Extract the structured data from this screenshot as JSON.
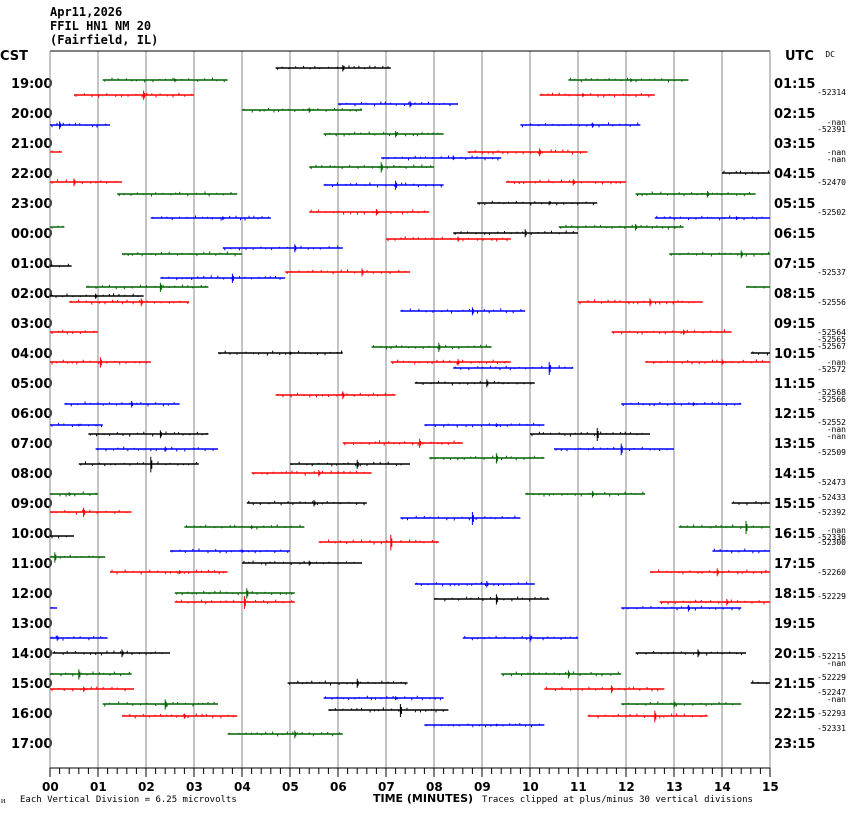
{
  "header": {
    "date": "Apr11,2026",
    "station": "FFIL HN1 NM 20",
    "location": "(Fairfield, IL)"
  },
  "left_axis_title": "CST",
  "right_axis_title": "UTC",
  "dc_title": "DC",
  "chart_data": {
    "type": "line",
    "title": "FFIL HN1 NM 20 (Fairfield, IL) Apr11,2026",
    "xlabel": "TIME (MINUTES)",
    "xlim": [
      0,
      15
    ],
    "x_ticks": [
      "00",
      "01",
      "02",
      "03",
      "04",
      "05",
      "06",
      "07",
      "08",
      "09",
      "10",
      "11",
      "12",
      "13",
      "14",
      "15"
    ],
    "grid": true,
    "cst_labels": [
      "19:00",
      "20:00",
      "21:00",
      "22:00",
      "23:00",
      "00:00",
      "01:00",
      "02:00",
      "03:00",
      "04:00",
      "05:00",
      "06:00",
      "07:00",
      "08:00",
      "09:00",
      "10:00",
      "11:00",
      "12:00",
      "13:00",
      "14:00",
      "15:00",
      "16:00",
      "17:00"
    ],
    "utc_labels": [
      "01:15",
      "02:15",
      "03:15",
      "04:15",
      "05:15",
      "06:15",
      "07:15",
      "08:15",
      "09:15",
      "10:15",
      "11:15",
      "12:15",
      "13:15",
      "14:15",
      "15:15",
      "16:15",
      "17:15",
      "18:15",
      "19:15",
      "20:15",
      "21:15",
      "22:15",
      "23:15"
    ],
    "dc_values": [
      {
        "row": 0,
        "texts": [
          "-52314"
        ]
      },
      {
        "row": 1,
        "texts": [
          "-nan",
          "-52391"
        ]
      },
      {
        "row": 2,
        "texts": [
          "-nan",
          "-nan"
        ]
      },
      {
        "row": 3,
        "texts": [
          "-52470"
        ]
      },
      {
        "row": 4,
        "texts": [
          "-52502"
        ]
      },
      {
        "row": 6,
        "texts": [
          "-52537"
        ]
      },
      {
        "row": 7,
        "texts": [
          "-52556"
        ]
      },
      {
        "row": 8,
        "texts": [
          "-52564",
          "-52565",
          "-52567"
        ]
      },
      {
        "row": 9,
        "texts": [
          "-nan",
          "-52572"
        ]
      },
      {
        "row": 10,
        "texts": [
          "-52568",
          "-52566"
        ]
      },
      {
        "row": 11,
        "texts": [
          "-52552",
          "-nan",
          "-nan"
        ]
      },
      {
        "row": 12,
        "texts": [
          "-52509"
        ]
      },
      {
        "row": 13,
        "texts": [
          "-52473"
        ]
      },
      {
        "row": 13.5,
        "texts": [
          "-52433"
        ]
      },
      {
        "row": 14,
        "texts": [
          "-52392"
        ]
      },
      {
        "row": 14.6,
        "texts": [
          "-nan",
          "-52336"
        ]
      },
      {
        "row": 15,
        "texts": [
          "-52300"
        ]
      },
      {
        "row": 16,
        "texts": [
          "-52260"
        ]
      },
      {
        "row": 16.8,
        "texts": [
          "-52229"
        ]
      },
      {
        "row": 18.8,
        "texts": [
          "-52215",
          "-nan"
        ]
      },
      {
        "row": 19.5,
        "texts": [
          "-52229"
        ]
      },
      {
        "row": 20,
        "texts": [
          "-52247",
          "-nan"
        ]
      },
      {
        "row": 20.7,
        "texts": [
          "-52293"
        ]
      },
      {
        "row": 21.2,
        "texts": [
          "-52331"
        ]
      }
    ],
    "series_colors": {
      "black": "#000000",
      "red": "#ff0000",
      "blue": "#0000ff",
      "green": "#006400"
    },
    "segments": [
      {
        "row": -0.6,
        "start": 4.7,
        "end": 7.1,
        "color": "black",
        "spike": 6.1,
        "amp": 5
      },
      {
        "row": -0.2,
        "start": 1.1,
        "end": 3.7,
        "color": "green",
        "spike": 2.6,
        "amp": 3
      },
      {
        "row": -0.2,
        "start": 10.8,
        "end": 13.3,
        "color": "green",
        "spike": 12.1,
        "amp": 3
      },
      {
        "row": 0.3,
        "start": 0.5,
        "end": 3.0,
        "color": "red",
        "spike": 1.95,
        "amp": 7
      },
      {
        "row": 0.3,
        "start": 10.2,
        "end": 12.6,
        "color": "red",
        "spike": 11.1,
        "amp": 3
      },
      {
        "row": 0.6,
        "start": 6.0,
        "end": 8.5,
        "color": "blue",
        "spike": 7.5,
        "amp": 5
      },
      {
        "row": 0.8,
        "start": 4.0,
        "end": 6.5,
        "color": "green",
        "spike": 5.4,
        "amp": 4
      },
      {
        "row": 1.3,
        "start": 0.0,
        "end": 1.25,
        "color": "blue",
        "spike": 0.2,
        "amp": 6
      },
      {
        "row": 1.3,
        "start": 9.8,
        "end": 12.3,
        "color": "blue",
        "spike": 11.3,
        "amp": 4
      },
      {
        "row": 1.6,
        "start": 5.7,
        "end": 8.2,
        "color": "green",
        "spike": 7.2,
        "amp": 5
      },
      {
        "row": 2.2,
        "start": 0.0,
        "end": 0.25,
        "color": "red",
        "spike": null,
        "amp": 0
      },
      {
        "row": 2.2,
        "start": 8.7,
        "end": 11.2,
        "color": "red",
        "spike": 10.2,
        "amp": 6
      },
      {
        "row": 2.4,
        "start": 6.9,
        "end": 9.4,
        "color": "blue",
        "spike": 8.4,
        "amp": 3
      },
      {
        "row": 2.7,
        "start": 5.4,
        "end": 8.0,
        "color": "green",
        "spike": 6.9,
        "amp": 8
      },
      {
        "row": 2.9,
        "start": 14.0,
        "end": 15.0,
        "color": "black",
        "spike": null,
        "amp": 0
      },
      {
        "row": 3.2,
        "start": 0.0,
        "end": 1.5,
        "color": "red",
        "spike": 0.5,
        "amp": 6
      },
      {
        "row": 3.2,
        "start": 9.5,
        "end": 12.0,
        "color": "red",
        "spike": 10.9,
        "amp": 5
      },
      {
        "row": 3.3,
        "start": 5.7,
        "end": 8.2,
        "color": "blue",
        "spike": 7.2,
        "amp": 7
      },
      {
        "row": 3.6,
        "start": 1.4,
        "end": 3.9,
        "color": "green",
        "spike": null,
        "amp": 0
      },
      {
        "row": 3.6,
        "start": 12.2,
        "end": 14.7,
        "color": "green",
        "spike": 13.7,
        "amp": 5
      },
      {
        "row": 3.9,
        "start": 8.9,
        "end": 11.4,
        "color": "black",
        "spike": 10.4,
        "amp": 3
      },
      {
        "row": 4.2,
        "start": 5.4,
        "end": 7.9,
        "color": "red",
        "spike": 6.8,
        "amp": 5
      },
      {
        "row": 4.4,
        "start": 2.1,
        "end": 4.6,
        "color": "blue",
        "spike": 3.6,
        "amp": 3
      },
      {
        "row": 4.4,
        "start": 12.6,
        "end": 15.0,
        "color": "blue",
        "spike": 14.3,
        "amp": 3
      },
      {
        "row": 4.7,
        "start": 0.0,
        "end": 0.3,
        "color": "green",
        "spike": null,
        "amp": 0
      },
      {
        "row": 4.7,
        "start": 10.6,
        "end": 13.2,
        "color": "green",
        "spike": 12.2,
        "amp": 5
      },
      {
        "row": 4.9,
        "start": 8.4,
        "end": 11.0,
        "color": "black",
        "spike": 9.9,
        "amp": 6
      },
      {
        "row": 5.1,
        "start": 7.0,
        "end": 9.6,
        "color": "red",
        "spike": 8.5,
        "amp": 4
      },
      {
        "row": 5.4,
        "start": 3.6,
        "end": 6.1,
        "color": "blue",
        "spike": 5.1,
        "amp": 6
      },
      {
        "row": 5.6,
        "start": 1.5,
        "end": 4.0,
        "color": "green",
        "spike": null,
        "amp": 0
      },
      {
        "row": 5.6,
        "start": 12.9,
        "end": 15.0,
        "color": "green",
        "spike": 14.4,
        "amp": 6
      },
      {
        "row": 6.0,
        "start": 0.0,
        "end": 0.45,
        "color": "black",
        "spike": null,
        "amp": 0
      },
      {
        "row": 6.2,
        "start": 4.9,
        "end": 7.5,
        "color": "red",
        "spike": 6.5,
        "amp": 6
      },
      {
        "row": 6.4,
        "start": 2.3,
        "end": 4.9,
        "color": "blue",
        "spike": 3.8,
        "amp": 7
      },
      {
        "row": 6.7,
        "start": 0.75,
        "end": 3.3,
        "color": "green",
        "spike": 2.3,
        "amp": 7
      },
      {
        "row": 6.7,
        "start": 14.5,
        "end": 15.0,
        "color": "green",
        "spike": null,
        "amp": 0
      },
      {
        "row": 7.0,
        "start": 0.0,
        "end": 1.95,
        "color": "black",
        "spike": 0.95,
        "amp": 4
      },
      {
        "row": 7.2,
        "start": 0.4,
        "end": 2.9,
        "color": "red",
        "spike": 1.9,
        "amp": 6
      },
      {
        "row": 7.2,
        "start": 11.0,
        "end": 13.6,
        "color": "red",
        "spike": 12.5,
        "amp": 6
      },
      {
        "row": 7.5,
        "start": 7.3,
        "end": 9.9,
        "color": "blue",
        "spike": 8.8,
        "amp": 6
      },
      {
        "row": 8.2,
        "start": 0.0,
        "end": 1.0,
        "color": "red",
        "spike": null,
        "amp": 0
      },
      {
        "row": 8.2,
        "start": 11.7,
        "end": 14.2,
        "color": "red",
        "spike": 13.2,
        "amp": 4
      },
      {
        "row": 8.7,
        "start": 6.7,
        "end": 9.2,
        "color": "green",
        "spike": 8.1,
        "amp": 7
      },
      {
        "row": 8.9,
        "start": 3.5,
        "end": 6.1,
        "color": "black",
        "spike": 5.0,
        "amp": 3
      },
      {
        "row": 8.9,
        "start": 14.6,
        "end": 15.0,
        "color": "black",
        "spike": null,
        "amp": 0
      },
      {
        "row": 9.2,
        "start": 0.0,
        "end": 2.1,
        "color": "red",
        "spike": 1.05,
        "amp": 8
      },
      {
        "row": 9.2,
        "start": 7.1,
        "end": 9.6,
        "color": "red",
        "spike": 8.5,
        "amp": 5
      },
      {
        "row": 9.2,
        "start": 12.4,
        "end": 15.0,
        "color": "red",
        "spike": 14.0,
        "amp": 5
      },
      {
        "row": 9.4,
        "start": 8.4,
        "end": 10.9,
        "color": "blue",
        "spike": 10.4,
        "amp": 10
      },
      {
        "row": 9.9,
        "start": 7.6,
        "end": 10.1,
        "color": "black",
        "spike": 9.1,
        "amp": 6
      },
      {
        "row": 10.3,
        "start": 4.7,
        "end": 7.2,
        "color": "red",
        "spike": 6.1,
        "amp": 6
      },
      {
        "row": 10.6,
        "start": 0.3,
        "end": 2.7,
        "color": "blue",
        "spike": 1.7,
        "amp": 5
      },
      {
        "row": 10.6,
        "start": 11.9,
        "end": 14.4,
        "color": "blue",
        "spike": 13.4,
        "amp": 3
      },
      {
        "row": 11.3,
        "start": 0.0,
        "end": 1.1,
        "color": "blue",
        "spike": 0.6,
        "amp": 2
      },
      {
        "row": 11.3,
        "start": 7.8,
        "end": 10.3,
        "color": "blue",
        "spike": 9.3,
        "amp": 3
      },
      {
        "row": 11.6,
        "start": 0.8,
        "end": 3.3,
        "color": "black",
        "spike": 2.3,
        "amp": 6
      },
      {
        "row": 11.6,
        "start": 10.0,
        "end": 12.5,
        "color": "black",
        "spike": 11.4,
        "amp": 10
      },
      {
        "row": 11.9,
        "start": 6.1,
        "end": 8.6,
        "color": "red",
        "spike": 7.7,
        "amp": 7
      },
      {
        "row": 12.1,
        "start": 0.95,
        "end": 3.5,
        "color": "blue",
        "spike": 2.4,
        "amp": 4
      },
      {
        "row": 12.1,
        "start": 10.5,
        "end": 13.0,
        "color": "blue",
        "spike": 11.9,
        "amp": 9
      },
      {
        "row": 12.4,
        "start": 7.9,
        "end": 10.3,
        "color": "green",
        "spike": 9.3,
        "amp": 8
      },
      {
        "row": 12.6,
        "start": 0.6,
        "end": 3.1,
        "color": "black",
        "spike": 2.1,
        "amp": 12
      },
      {
        "row": 12.6,
        "start": 5.0,
        "end": 7.5,
        "color": "black",
        "spike": 6.4,
        "amp": 7
      },
      {
        "row": 12.9,
        "start": 4.2,
        "end": 6.7,
        "color": "red",
        "spike": 5.6,
        "amp": 5
      },
      {
        "row": 13.6,
        "start": 0.0,
        "end": 1.0,
        "color": "green",
        "spike": 0.4,
        "amp": 3
      },
      {
        "row": 13.6,
        "start": 9.9,
        "end": 12.4,
        "color": "green",
        "spike": 11.3,
        "amp": 5
      },
      {
        "row": 13.9,
        "start": 4.1,
        "end": 6.6,
        "color": "black",
        "spike": 5.5,
        "amp": 5
      },
      {
        "row": 13.9,
        "start": 14.2,
        "end": 15.0,
        "color": "black",
        "spike": null,
        "amp": 0
      },
      {
        "row": 14.2,
        "start": 0.0,
        "end": 1.7,
        "color": "red",
        "spike": 0.7,
        "amp": 7
      },
      {
        "row": 14.4,
        "start": 7.3,
        "end": 9.8,
        "color": "blue",
        "spike": 8.8,
        "amp": 10
      },
      {
        "row": 14.7,
        "start": 2.8,
        "end": 5.3,
        "color": "green",
        "spike": 4.2,
        "amp": 3
      },
      {
        "row": 14.7,
        "start": 13.1,
        "end": 15.0,
        "color": "green",
        "spike": 14.5,
        "amp": 10
      },
      {
        "row": 15.0,
        "start": 0.0,
        "end": 0.5,
        "color": "black",
        "spike": null,
        "amp": 0
      },
      {
        "row": 15.2,
        "start": 5.6,
        "end": 8.1,
        "color": "red",
        "spike": 7.1,
        "amp": 12
      },
      {
        "row": 15.5,
        "start": 2.5,
        "end": 5.0,
        "color": "blue",
        "spike": 4.0,
        "amp": 3
      },
      {
        "row": 15.5,
        "start": 13.8,
        "end": 15.0,
        "color": "blue",
        "spike": null,
        "amp": 0
      },
      {
        "row": 15.7,
        "start": 0.0,
        "end": 1.15,
        "color": "green",
        "spike": 0.1,
        "amp": 8
      },
      {
        "row": 15.9,
        "start": 4.0,
        "end": 6.5,
        "color": "black",
        "spike": 5.4,
        "amp": 4
      },
      {
        "row": 16.2,
        "start": 1.25,
        "end": 3.7,
        "color": "red",
        "spike": 2.7,
        "amp": 3
      },
      {
        "row": 16.2,
        "start": 12.5,
        "end": 15.0,
        "color": "red",
        "spike": 13.9,
        "amp": 6
      },
      {
        "row": 16.6,
        "start": 7.6,
        "end": 10.1,
        "color": "blue",
        "spike": 9.1,
        "amp": 5
      },
      {
        "row": 16.9,
        "start": 2.6,
        "end": 5.1,
        "color": "green",
        "spike": 4.1,
        "amp": 8
      },
      {
        "row": 17.1,
        "start": 8.0,
        "end": 10.4,
        "color": "black",
        "spike": 9.3,
        "amp": 8
      },
      {
        "row": 17.2,
        "start": 2.6,
        "end": 5.1,
        "color": "red",
        "spike": 4.05,
        "amp": 10
      },
      {
        "row": 17.2,
        "start": 12.7,
        "end": 15.0,
        "color": "red",
        "spike": 14.1,
        "amp": 5
      },
      {
        "row": 17.4,
        "start": 0.0,
        "end": 0.15,
        "color": "blue",
        "spike": null,
        "amp": 0
      },
      {
        "row": 17.4,
        "start": 11.9,
        "end": 14.4,
        "color": "blue",
        "spike": 13.3,
        "amp": 5
      },
      {
        "row": 18.4,
        "start": 0.0,
        "end": 1.2,
        "color": "blue",
        "spike": 0.15,
        "amp": 4
      },
      {
        "row": 18.4,
        "start": 8.6,
        "end": 11.0,
        "color": "blue",
        "spike": 10.0,
        "amp": 6
      },
      {
        "row": 18.9,
        "start": 0.05,
        "end": 2.5,
        "color": "black",
        "spike": 1.5,
        "amp": 6
      },
      {
        "row": 18.9,
        "start": 12.2,
        "end": 14.5,
        "color": "black",
        "spike": 13.5,
        "amp": 6
      },
      {
        "row": 19.6,
        "start": 0.0,
        "end": 1.7,
        "color": "green",
        "spike": 0.6,
        "amp": 8
      },
      {
        "row": 19.6,
        "start": 9.4,
        "end": 11.9,
        "color": "green",
        "spike": 10.8,
        "amp": 6
      },
      {
        "row": 19.9,
        "start": 4.95,
        "end": 7.45,
        "color": "black",
        "spike": 6.4,
        "amp": 7
      },
      {
        "row": 19.9,
        "start": 14.6,
        "end": 15.0,
        "color": "black",
        "spike": null,
        "amp": 0
      },
      {
        "row": 20.1,
        "start": 0.0,
        "end": 1.75,
        "color": "red",
        "spike": 0.7,
        "amp": 4
      },
      {
        "row": 20.1,
        "start": 10.3,
        "end": 12.8,
        "color": "red",
        "spike": 11.7,
        "amp": 6
      },
      {
        "row": 20.4,
        "start": 5.7,
        "end": 8.2,
        "color": "blue",
        "spike": 7.2,
        "amp": 3
      },
      {
        "row": 20.6,
        "start": 1.1,
        "end": 3.5,
        "color": "green",
        "spike": 2.4,
        "amp": 8
      },
      {
        "row": 20.6,
        "start": 11.9,
        "end": 14.4,
        "color": "green",
        "spike": 13.0,
        "amp": 6
      },
      {
        "row": 20.8,
        "start": 5.8,
        "end": 8.3,
        "color": "black",
        "spike": 7.3,
        "amp": 10
      },
      {
        "row": 21.0,
        "start": 1.5,
        "end": 3.9,
        "color": "red",
        "spike": 2.8,
        "amp": 4
      },
      {
        "row": 21.0,
        "start": 11.2,
        "end": 13.7,
        "color": "red",
        "spike": 12.6,
        "amp": 9
      },
      {
        "row": 21.3,
        "start": 7.8,
        "end": 10.3,
        "color": "blue",
        "spike": 9.3,
        "amp": 2
      },
      {
        "row": 21.6,
        "start": 3.7,
        "end": 6.1,
        "color": "green",
        "spike": 5.1,
        "amp": 6
      }
    ]
  },
  "footer": {
    "scale_text": "Each Vertical Division =    6.25 microvolts",
    "axis_title": "TIME (MINUTES)",
    "clip_text": "Traces clipped at plus/minus 30 vertical divisions",
    "corner_mark": "ᴎ"
  }
}
